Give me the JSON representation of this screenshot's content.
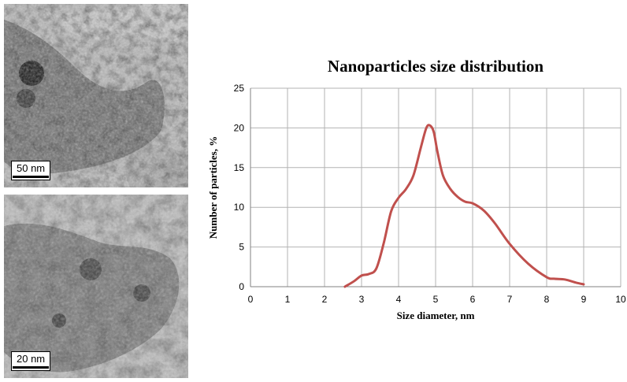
{
  "images": {
    "top": {
      "scale_label": "50 nm"
    },
    "bottom": {
      "scale_label": "20 nm"
    }
  },
  "chart_data": {
    "type": "line",
    "title": "Nanoparticles size distribution",
    "xlabel": "Size diameter, nm",
    "ylabel": "Number of particles, %",
    "xlim": [
      0,
      10
    ],
    "ylim": [
      0,
      25
    ],
    "xticks": [
      0,
      1,
      2,
      3,
      4,
      5,
      6,
      7,
      8,
      9,
      10
    ],
    "yticks": [
      0,
      5,
      10,
      15,
      20,
      25
    ],
    "grid": true,
    "legend": "none",
    "series": [
      {
        "color": "#c0504d",
        "x": [
          2.55,
          2.8,
          3.0,
          3.2,
          3.4,
          3.6,
          3.8,
          4.0,
          4.2,
          4.4,
          4.6,
          4.75,
          4.85,
          4.95,
          5.05,
          5.2,
          5.4,
          5.6,
          5.8,
          6.0,
          6.3,
          6.6,
          7.0,
          7.5,
          8.0,
          8.2,
          8.5,
          8.8,
          9.0
        ],
        "y": [
          0.0,
          0.7,
          1.4,
          1.6,
          2.3,
          5.5,
          9.5,
          11.2,
          12.3,
          14.0,
          17.5,
          20.0,
          20.3,
          19.5,
          17.0,
          14.0,
          12.3,
          11.3,
          10.7,
          10.5,
          9.6,
          8.0,
          5.4,
          2.9,
          1.2,
          1.0,
          0.9,
          0.5,
          0.3
        ]
      }
    ]
  }
}
